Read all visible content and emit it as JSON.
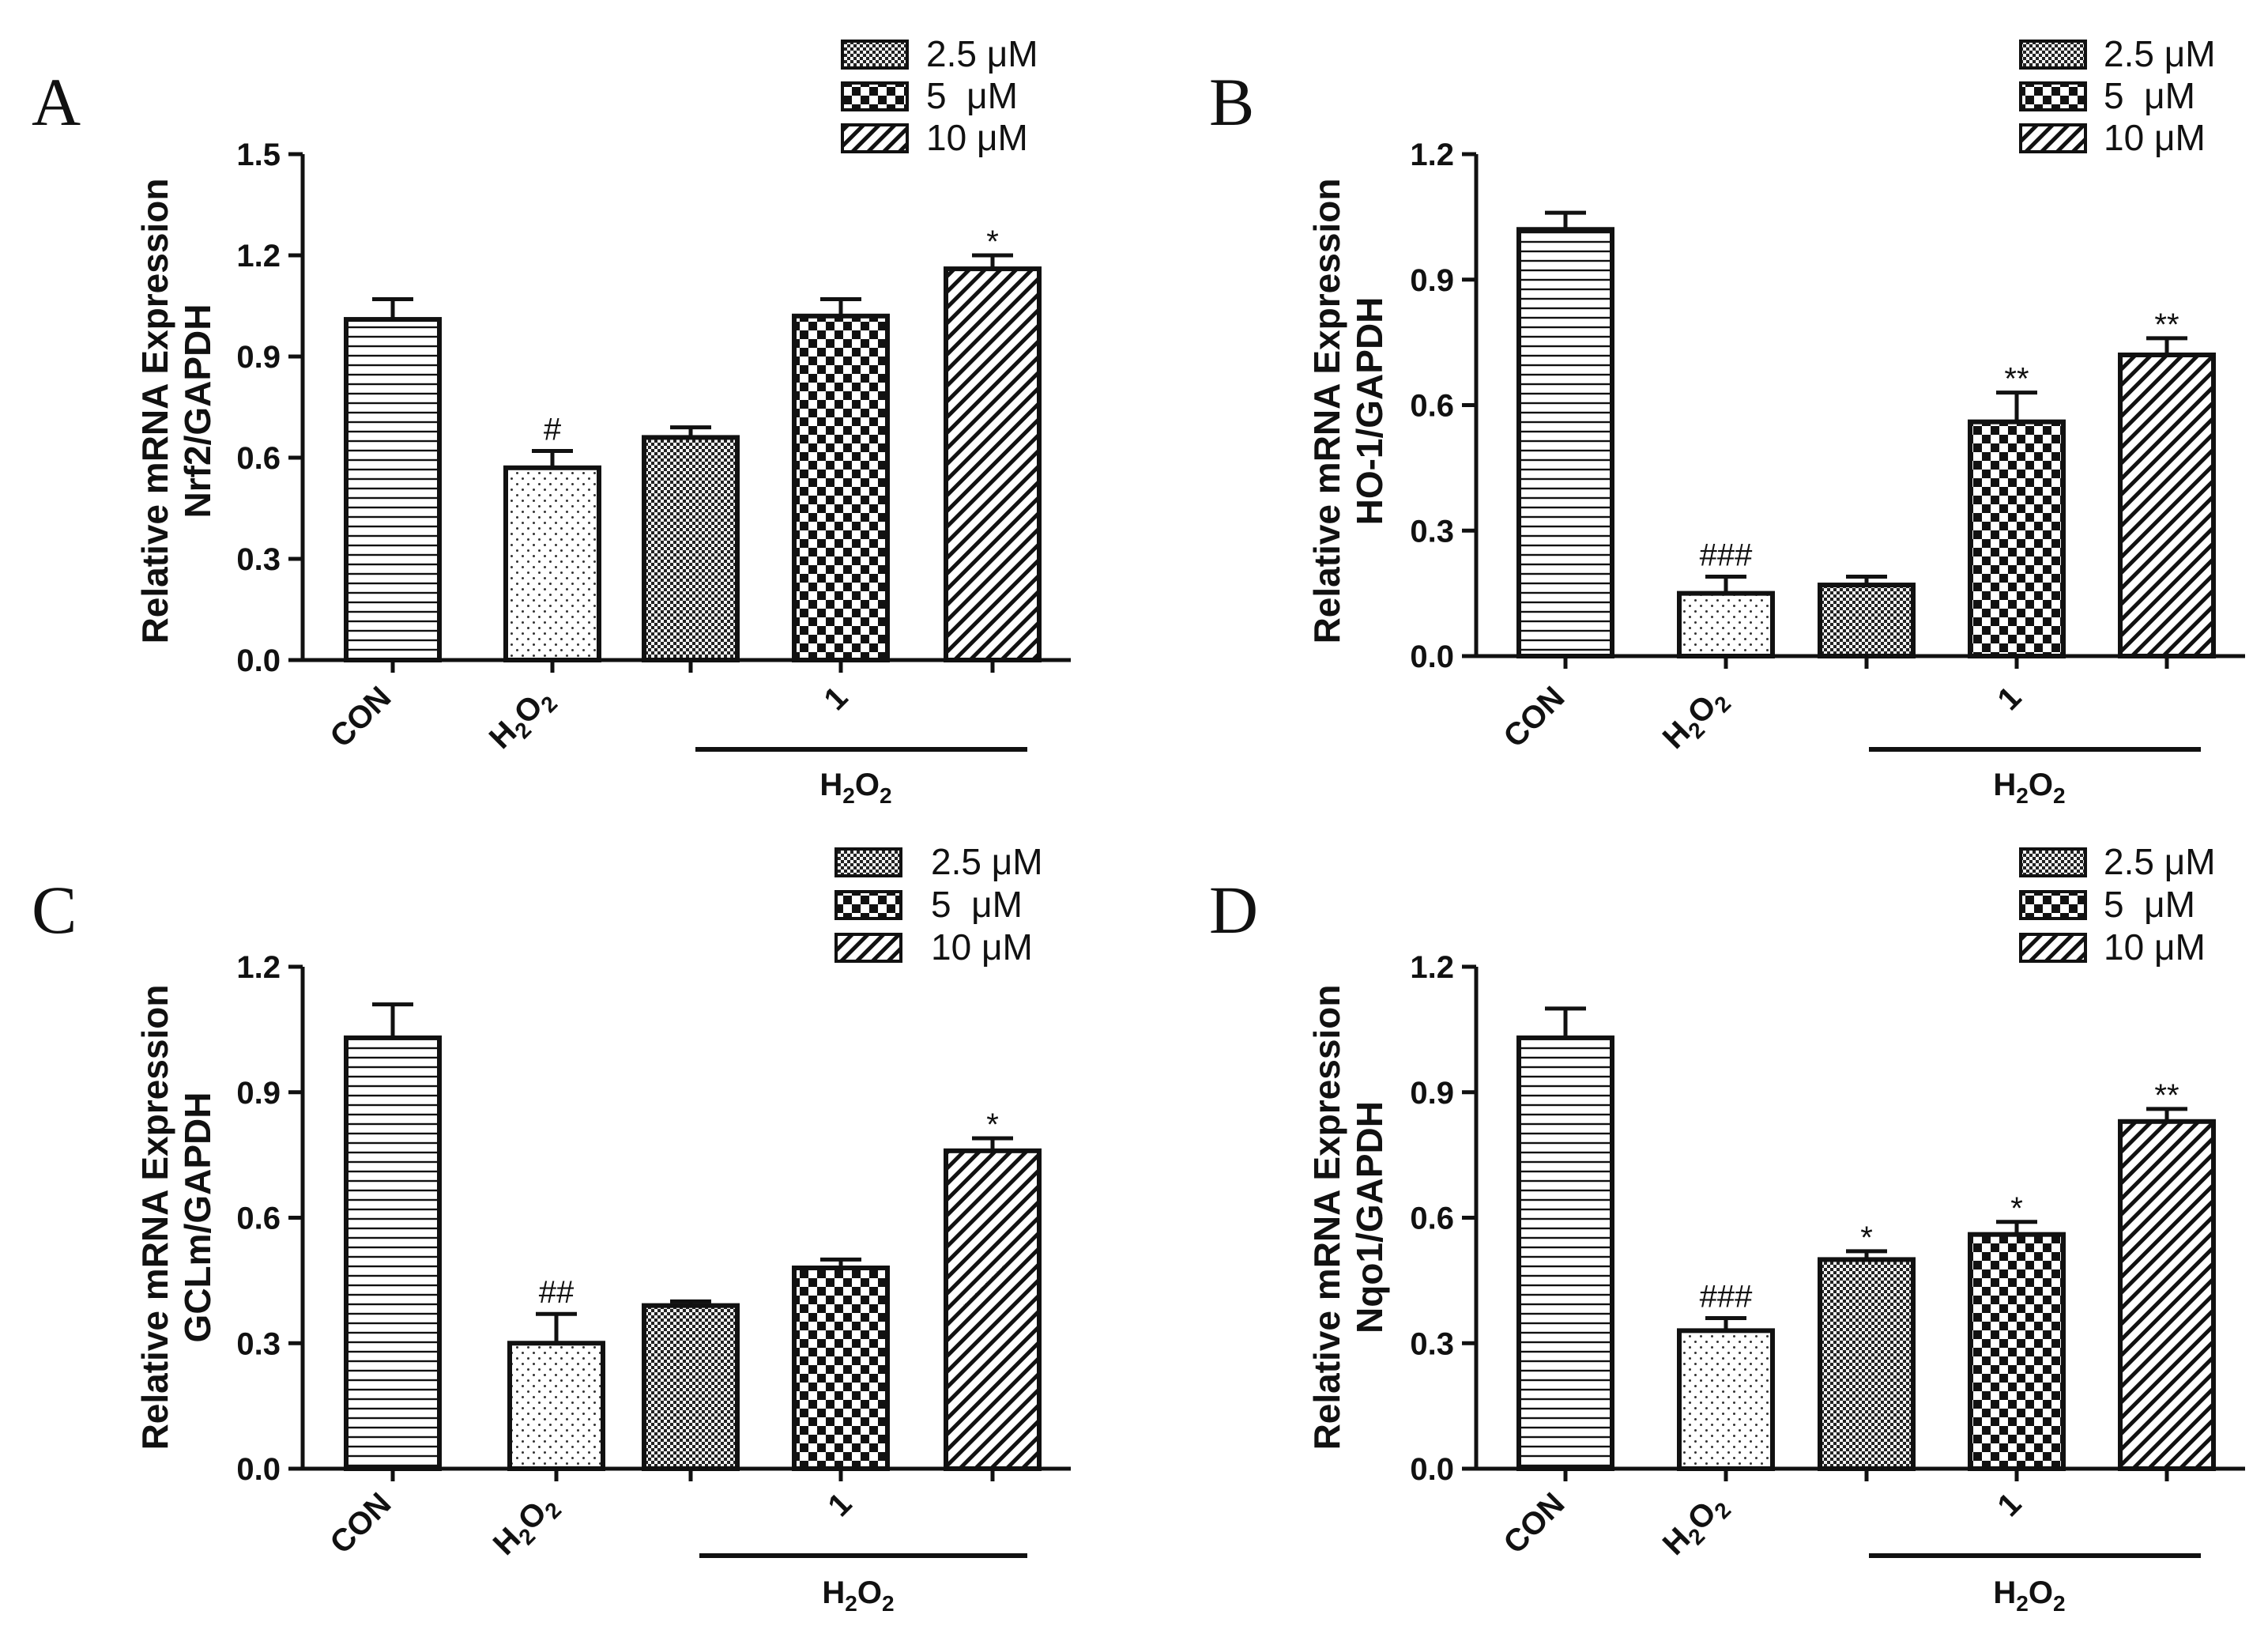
{
  "legend": {
    "entries": [
      {
        "label": "2.5 μM",
        "pattern": "checker-fine"
      },
      {
        "label": "5  μM",
        "pattern": "checker-large"
      },
      {
        "label": "10 μM",
        "pattern": "diagonal"
      }
    ]
  },
  "categories": [
    "CON",
    "H2O2",
    "",
    "1",
    ""
  ],
  "group_compound_label": "1",
  "group_treatment_label": "H2O2",
  "chart_data": [
    {
      "panel": "A",
      "type": "bar",
      "ylabel_line1": "Relative mRNA Expression",
      "ylabel_line2": "Nrf2/GAPDH",
      "ylim": [
        0,
        1.5
      ],
      "yticks": [
        "0.0",
        "0.3",
        "0.6",
        "0.9",
        "1.2",
        "1.5"
      ],
      "bars": [
        {
          "group": "CON",
          "pattern": "horizontal",
          "value": 1.01,
          "error": 0.06,
          "annotation": ""
        },
        {
          "group": "H2O2",
          "pattern": "dots",
          "value": 0.57,
          "error": 0.05,
          "annotation": "#"
        },
        {
          "group": "1 + H2O2, 2.5 μM",
          "pattern": "checker-fine",
          "value": 0.66,
          "error": 0.03,
          "annotation": ""
        },
        {
          "group": "1 + H2O2, 5 μM",
          "pattern": "checker-large",
          "value": 1.02,
          "error": 0.05,
          "annotation": ""
        },
        {
          "group": "1 + H2O2, 10 μM",
          "pattern": "diagonal",
          "value": 1.16,
          "error": 0.04,
          "annotation": "*"
        }
      ]
    },
    {
      "panel": "B",
      "type": "bar",
      "ylabel_line1": "Relative mRNA Expression",
      "ylabel_line2": "HO-1/GAPDH",
      "ylim": [
        0,
        1.2
      ],
      "yticks": [
        "0.0",
        "0.3",
        "0.6",
        "0.9",
        "1.2"
      ],
      "bars": [
        {
          "group": "CON",
          "pattern": "horizontal",
          "value": 1.02,
          "error": 0.04,
          "annotation": ""
        },
        {
          "group": "H2O2",
          "pattern": "dots",
          "value": 0.15,
          "error": 0.04,
          "annotation": "###"
        },
        {
          "group": "1 + H2O2, 2.5 μM",
          "pattern": "checker-fine",
          "value": 0.17,
          "error": 0.02,
          "annotation": ""
        },
        {
          "group": "1 + H2O2, 5 μM",
          "pattern": "checker-large",
          "value": 0.56,
          "error": 0.07,
          "annotation": "**"
        },
        {
          "group": "1 + H2O2, 10 μM",
          "pattern": "diagonal",
          "value": 0.72,
          "error": 0.04,
          "annotation": "**"
        }
      ]
    },
    {
      "panel": "C",
      "type": "bar",
      "ylabel_line1": "Relative mRNA Expression",
      "ylabel_line2": "GCLm/GAPDH",
      "ylim": [
        0,
        1.2
      ],
      "yticks": [
        "0.0",
        "0.3",
        "0.6",
        "0.9",
        "1.2"
      ],
      "bars": [
        {
          "group": "CON",
          "pattern": "horizontal",
          "value": 1.03,
          "error": 0.08,
          "annotation": ""
        },
        {
          "group": "H2O2",
          "pattern": "dots",
          "value": 0.3,
          "error": 0.07,
          "annotation": "##"
        },
        {
          "group": "1 + H2O2, 2.5 μM",
          "pattern": "checker-fine",
          "value": 0.39,
          "error": 0.01,
          "annotation": ""
        },
        {
          "group": "1 + H2O2, 5 μM",
          "pattern": "checker-large",
          "value": 0.48,
          "error": 0.02,
          "annotation": ""
        },
        {
          "group": "1 + H2O2, 10 μM",
          "pattern": "diagonal",
          "value": 0.76,
          "error": 0.03,
          "annotation": "*"
        }
      ]
    },
    {
      "panel": "D",
      "type": "bar",
      "ylabel_line1": "Relative mRNA Expression",
      "ylabel_line2": "Nqo1/GAPDH",
      "ylim": [
        0,
        1.2
      ],
      "yticks": [
        "0.0",
        "0.3",
        "0.6",
        "0.9",
        "1.2"
      ],
      "bars": [
        {
          "group": "CON",
          "pattern": "horizontal",
          "value": 1.03,
          "error": 0.07,
          "annotation": ""
        },
        {
          "group": "H2O2",
          "pattern": "dots",
          "value": 0.33,
          "error": 0.03,
          "annotation": "###"
        },
        {
          "group": "1 + H2O2, 2.5 μM",
          "pattern": "checker-fine",
          "value": 0.5,
          "error": 0.02,
          "annotation": "*"
        },
        {
          "group": "1 + H2O2, 5 μM",
          "pattern": "checker-large",
          "value": 0.56,
          "error": 0.03,
          "annotation": "*"
        },
        {
          "group": "1 + H2O2, 10 μM",
          "pattern": "diagonal",
          "value": 0.83,
          "error": 0.03,
          "annotation": "**"
        }
      ]
    }
  ]
}
